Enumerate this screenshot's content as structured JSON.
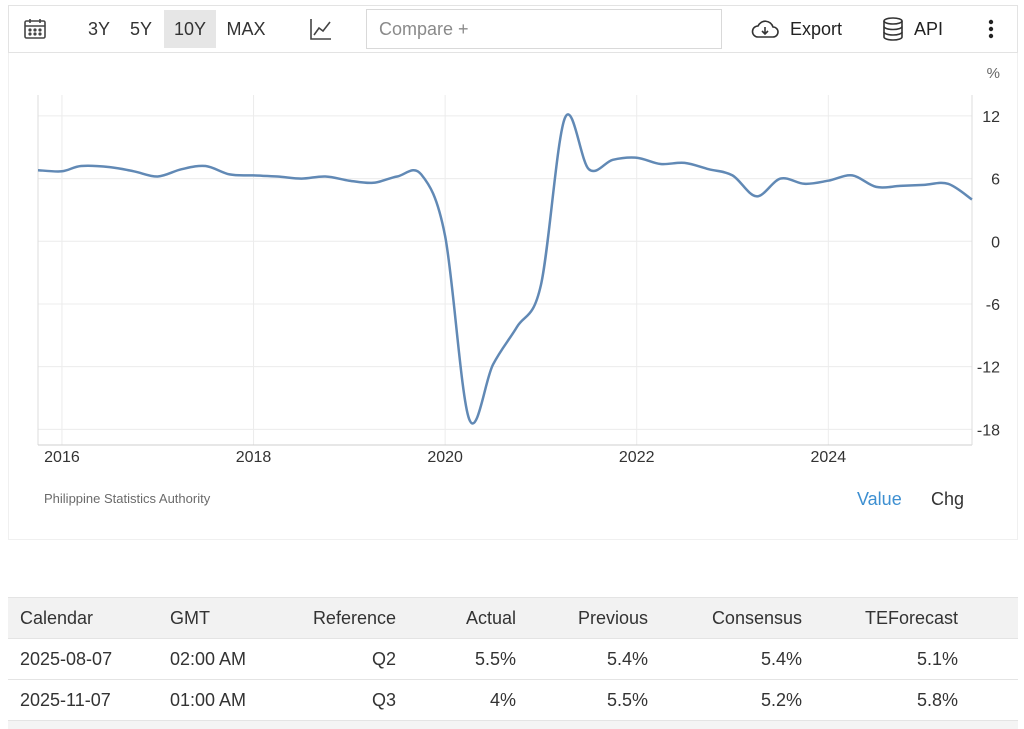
{
  "toolbar": {
    "ranges": [
      "3Y",
      "5Y",
      "10Y",
      "MAX"
    ],
    "active_range": "10Y",
    "compare_placeholder": "Compare +",
    "export_label": "Export",
    "api_label": "API",
    "icons": [
      "calendar-icon",
      "line-chart-icon",
      "cloud-download-icon",
      "database-icon",
      "more-vertical-icon"
    ]
  },
  "chart_data": {
    "type": "line",
    "unit": "%",
    "x_ticks": [
      "2016",
      "2018",
      "2020",
      "2022",
      "2024"
    ],
    "y_ticks": [
      12,
      6,
      0,
      -6,
      -12,
      -18
    ],
    "ylim": [
      -19.5,
      14
    ],
    "xlim": [
      2015.75,
      2025.5
    ],
    "grid": true,
    "line_color": "#6189b5",
    "series": [
      {
        "x": [
          2015.75,
          2016.0,
          2016.2,
          2016.5,
          2016.75,
          2017.0,
          2017.25,
          2017.5,
          2017.75,
          2018.0,
          2018.25,
          2018.5,
          2018.75,
          2019.0,
          2019.25,
          2019.5,
          2019.75,
          2020.0,
          2020.25,
          2020.5,
          2020.75,
          2021.0,
          2021.25,
          2021.5,
          2021.75,
          2022.0,
          2022.25,
          2022.5,
          2022.75,
          2023.0,
          2023.25,
          2023.5,
          2023.75,
          2024.0,
          2024.25,
          2024.5,
          2024.75,
          2025.0,
          2025.25,
          2025.5
        ],
        "values": [
          6.8,
          6.7,
          7.2,
          7.1,
          6.7,
          6.2,
          6.9,
          7.2,
          6.4,
          6.3,
          6.2,
          6.0,
          6.2,
          5.8,
          5.6,
          6.2,
          6.4,
          0.5,
          -17.0,
          -11.8,
          -8.2,
          -4.2,
          11.8,
          6.9,
          7.8,
          8.0,
          7.4,
          7.5,
          6.9,
          6.3,
          4.3,
          6.0,
          5.5,
          5.8,
          6.3,
          5.2,
          5.3,
          5.4,
          5.5,
          4.0
        ]
      }
    ],
    "source": "Philippine Statistics Authority"
  },
  "view_toggle": {
    "value_label": "Value",
    "chg_label": "Chg",
    "active": "Value"
  },
  "calendar_table": {
    "headers": [
      "Calendar",
      "GMT",
      "Reference",
      "Actual",
      "Previous",
      "Consensus",
      "TEForecast"
    ],
    "rows": [
      [
        "2025-08-07",
        "02:00 AM",
        "Q2",
        "5.5%",
        "5.4%",
        "5.4%",
        "5.1%"
      ],
      [
        "2025-11-07",
        "01:00 AM",
        "Q3",
        "4%",
        "5.5%",
        "5.2%",
        "5.8%"
      ]
    ]
  }
}
